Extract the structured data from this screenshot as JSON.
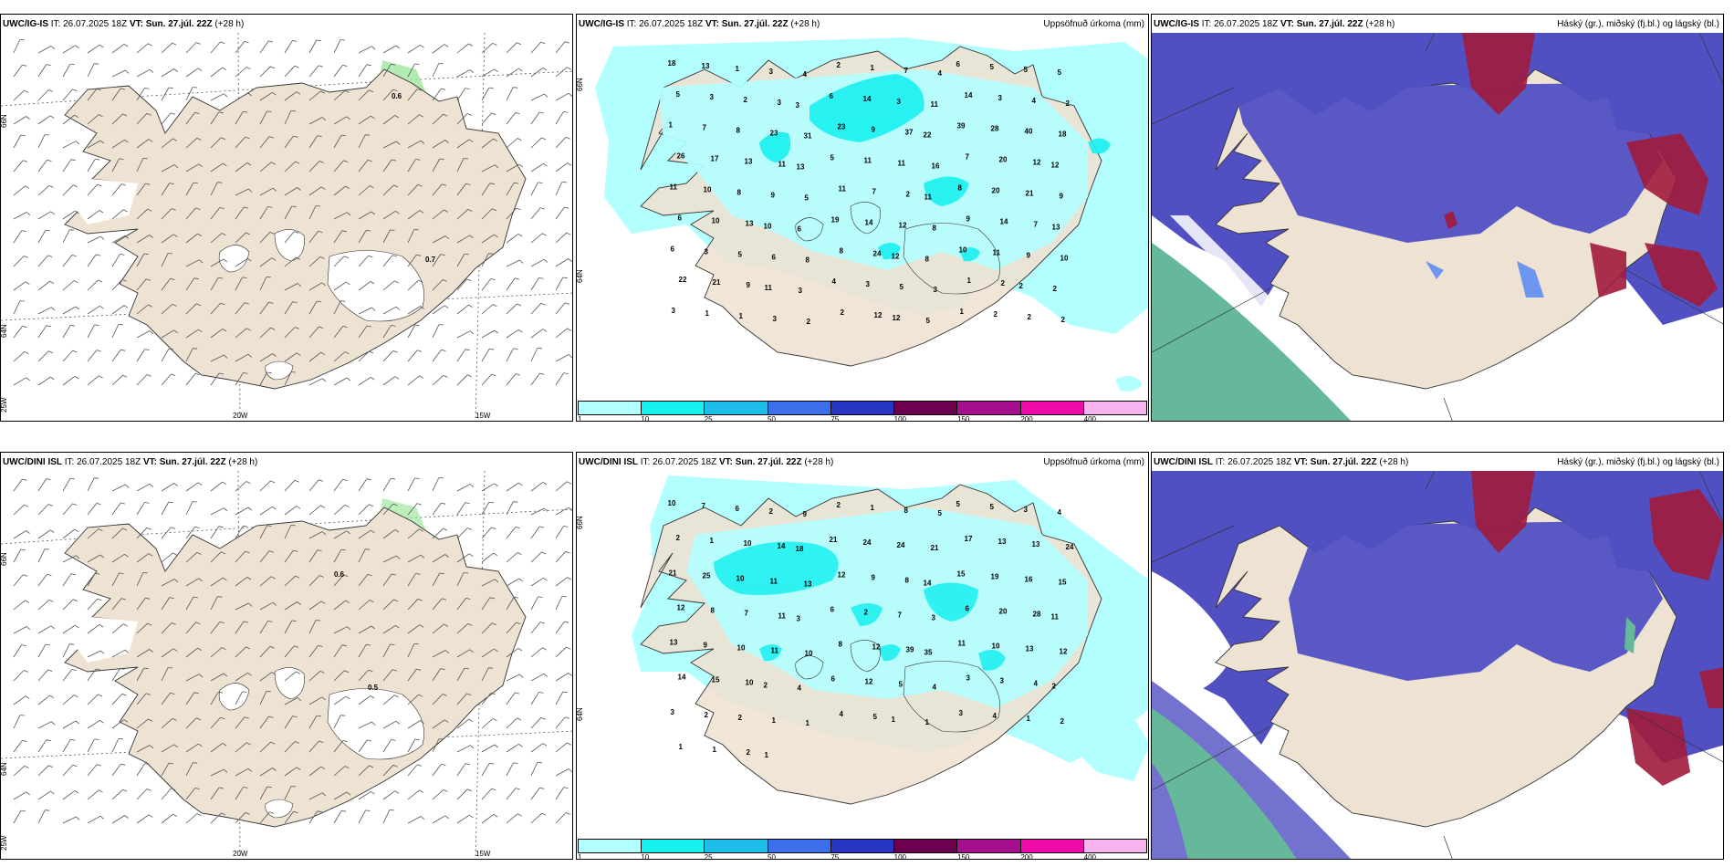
{
  "rows": [
    {
      "model": "UWC/IG-IS",
      "it_label": "IT:",
      "it_value": "26.07.2025 18Z",
      "vt_label": "VT:",
      "vt_value": "Sun. 27.júl. 22Z",
      "lead": "(+28 h)",
      "wind_max_labels": [
        "0.6",
        "0.7"
      ]
    },
    {
      "model": "UWC/DINI ISL",
      "it_label": "IT:",
      "it_value": "26.07.2025 18Z",
      "vt_label": "VT:",
      "vt_value": "Sun. 27.júl. 22Z",
      "lead": "(+28 h)",
      "wind_max_labels": [
        "0.6",
        "0.5"
      ]
    }
  ],
  "precip_title": "Uppsöfnuð úrkoma (mm)",
  "cloud_title": "Háský (gr.), miðský (fj.bl.) og lágský (bl.)",
  "axis_labels": {
    "lat_66": "66N",
    "lat_64": "64N",
    "lon_25": "25W",
    "lon_20": "20W",
    "lon_15": "15W",
    "lat_66_right": "66N",
    "lat_64_right": "64N"
  },
  "colorbar": {
    "labels": [
      "1",
      "10",
      "25",
      "50",
      "75",
      "100",
      "150",
      "200",
      "400"
    ],
    "colors": [
      "#b3ffff",
      "#19f0f0",
      "#1ebeeb",
      "#3c6eeb",
      "#2837c3",
      "#6e0050",
      "#a50e8c",
      "#f00aaa",
      "#f5b4f0"
    ]
  },
  "precip_values_top": [
    "18",
    "13",
    "1",
    "3",
    "4",
    "2",
    "1",
    "7",
    "4",
    "6",
    "5",
    "5",
    "5",
    "5",
    "3",
    "2",
    "3",
    "3",
    "6",
    "14",
    "3",
    "11",
    "14",
    "3",
    "4",
    "2",
    "1",
    "7",
    "8",
    "23",
    "31",
    "23",
    "9",
    "37",
    "22",
    "39",
    "28",
    "40",
    "18",
    "26",
    "17",
    "13",
    "11",
    "13",
    "5",
    "11",
    "11",
    "16",
    "7",
    "20",
    "12",
    "12",
    "11",
    "10",
    "8",
    "9",
    "5",
    "11",
    "7",
    "2",
    "11",
    "8",
    "20",
    "21",
    "9",
    "6",
    "10",
    "13",
    "10",
    "6",
    "19",
    "14",
    "12",
    "8",
    "9",
    "14",
    "7",
    "13",
    "6",
    "3",
    "5",
    "6",
    "8",
    "8",
    "24",
    "12",
    "8",
    "10",
    "11",
    "9",
    "10",
    "22",
    "21",
    "9",
    "11",
    "3",
    "4",
    "3",
    "5",
    "3",
    "1",
    "2",
    "2",
    "2",
    "3",
    "1",
    "1",
    "3",
    "2",
    "2",
    "12",
    "12",
    "5",
    "1",
    "2",
    "2",
    "2"
  ],
  "precip_values_bottom": [
    "10",
    "7",
    "6",
    "2",
    "9",
    "2",
    "1",
    "8",
    "5",
    "5",
    "5",
    "3",
    "4",
    "2",
    "1",
    "10",
    "14",
    "18",
    "21",
    "24",
    "24",
    "21",
    "17",
    "13",
    "13",
    "24",
    "21",
    "25",
    "10",
    "11",
    "13",
    "12",
    "9",
    "8",
    "14",
    "15",
    "19",
    "16",
    "15",
    "12",
    "8",
    "7",
    "11",
    "3",
    "6",
    "2",
    "7",
    "3",
    "6",
    "20",
    "28",
    "11",
    "13",
    "9",
    "10",
    "11",
    "10",
    "8",
    "12",
    "39",
    "35",
    "11",
    "10",
    "13",
    "12",
    "14",
    "15",
    "10",
    "2",
    "4",
    "6",
    "12",
    "5",
    "4",
    "3",
    "3",
    "4",
    "2",
    "3",
    "2",
    "2",
    "1",
    "1",
    "4",
    "5",
    "1",
    "1",
    "3",
    "4",
    "1",
    "2",
    "1",
    "1",
    "2",
    "1"
  ],
  "colors": {
    "land": "#eee2d2",
    "precip_light": "#b3ffff",
    "precip_mid": "#19f0f0",
    "cloud_high": "#a01b3c",
    "cloud_mid": "#5050c3",
    "cloud_low": "#6e96f0",
    "cloud_sea_green": "#66b89a",
    "wind_green": "#98e698"
  }
}
